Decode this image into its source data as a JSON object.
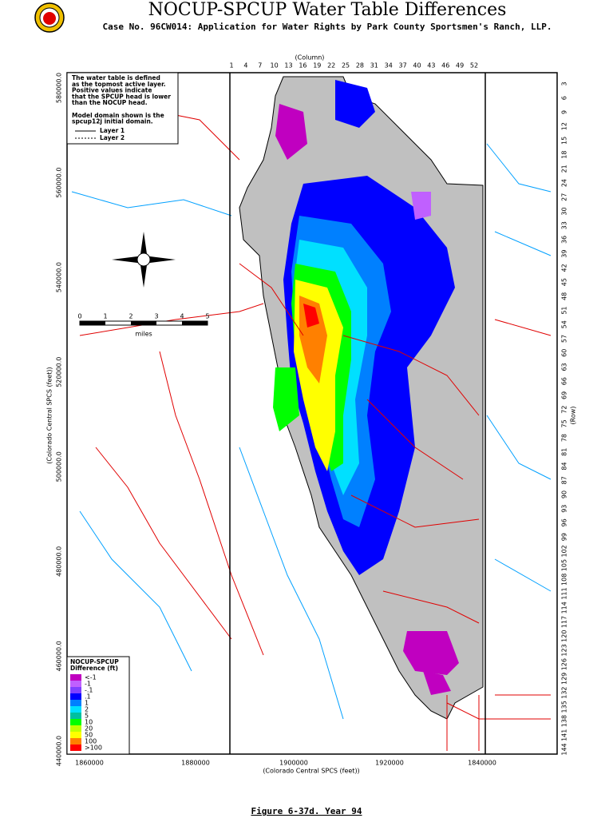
{
  "header": {
    "title": "NOCUP-SPCUP Water Table Differences",
    "subtitle": "Case No. 96CW014: Application for Water Rights by Park County Sportsmen's Ranch, LLP."
  },
  "map": {
    "column_title": "(Column)",
    "columns": [
      1,
      4,
      7,
      10,
      13,
      16,
      19,
      22,
      25,
      28,
      31,
      34,
      37,
      40,
      43,
      46,
      49,
      52
    ],
    "row_title": "(Row)",
    "rows": [
      3,
      6,
      9,
      12,
      15,
      18,
      21,
      24,
      27,
      30,
      33,
      36,
      39,
      42,
      45,
      48,
      51,
      54,
      57,
      60,
      63,
      66,
      69,
      72,
      75,
      78,
      81,
      84,
      87,
      90,
      93,
      96,
      99,
      102,
      105,
      108,
      111,
      114,
      117,
      120,
      123,
      126,
      129,
      132,
      135,
      138,
      141,
      144
    ],
    "y_axis_title": "(Colorado Central SPCS (feet))",
    "y_labels": [
      "580000.0",
      "560000.0",
      "540000.0",
      "520000.0",
      "500000.0",
      "480000.0",
      "460000.0",
      "440000.0"
    ],
    "x_axis_title": "(Colorado Central SPCS (feet))",
    "x_labels": [
      "1860000",
      "1880000",
      "1900000",
      "1920000",
      "1840000"
    ],
    "note": [
      "The water table is defined",
      "as the topmost active layer.",
      "Positive values indicate",
      "that the SPCUP head is lower",
      "than the NOCUP head.",
      "",
      "Model domain shown is the",
      "spcup12j initial domain."
    ],
    "note_layers": [
      "Layer 1",
      "Layer 2"
    ],
    "scale_ticks": [
      "0",
      "1",
      "2",
      "3",
      "4",
      "5"
    ],
    "scale_unit": "miles",
    "legend": {
      "title": [
        "NOCUP-SPCUP",
        "Difference (ft)"
      ],
      "entries": [
        {
          "label": "<-1",
          "color": "#c000c0"
        },
        {
          "label": "-1",
          "color": "#c060ff"
        },
        {
          "label": "-.1",
          "color": "#8040ff"
        },
        {
          "label": ".1",
          "color": "#0000ff"
        },
        {
          "label": "1",
          "color": "#0080ff"
        },
        {
          "label": "2",
          "color": "#00e0ff"
        },
        {
          "label": "5",
          "color": "#00c0a0"
        },
        {
          "label": "10",
          "color": "#00ff00"
        },
        {
          "label": "20",
          "color": "#c0ff00"
        },
        {
          "label": "50",
          "color": "#ffff00"
        },
        {
          "label": "100",
          "color": "#ff8000"
        },
        {
          "label": ">100",
          "color": "#ff0000"
        }
      ]
    }
  },
  "caption": "Figure 6-37d.  Year 94"
}
